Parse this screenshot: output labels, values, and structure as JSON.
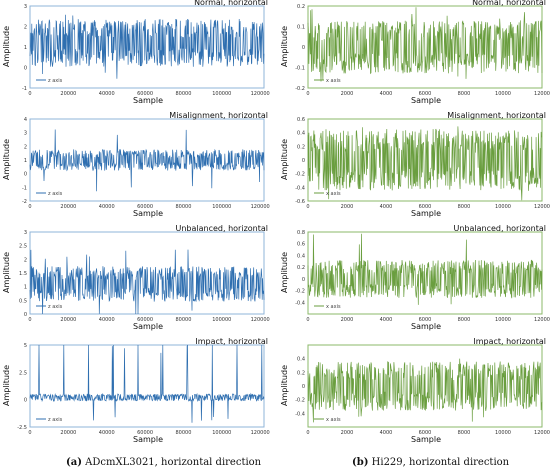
{
  "captions": {
    "left_letter": "(a)",
    "left_text": " ADcmXL3021, horizontal direction",
    "right_letter": "(b)",
    "right_text": " Hi229, horizontal direction"
  },
  "chart_data": [
    {
      "type": "line",
      "title": "Normal, horizontal",
      "xlabel": "Sample",
      "ylabel": "Amplitude",
      "series": [
        {
          "name": "z axis",
          "color": "#2f6fb0",
          "center": 1.2,
          "spread": 0.9,
          "peak": 2.6,
          "trough": -0.9
        }
      ],
      "xlim": [
        0,
        122000
      ],
      "ylim": [
        -1,
        3
      ],
      "xticks": [
        0,
        20000,
        40000,
        60000,
        80000,
        100000,
        120000
      ],
      "yticks": [
        -1,
        0,
        1,
        2,
        3
      ],
      "legend": "bottom-left"
    },
    {
      "type": "line",
      "title": "Misalignment, horizontal",
      "xlabel": "Sample",
      "ylabel": "Amplitude",
      "series": [
        {
          "name": "z axis",
          "color": "#2f6fb0",
          "center": 1.0,
          "spread": 0.6,
          "peak": 4.0,
          "trough": -1.5
        }
      ],
      "xlim": [
        0,
        122000
      ],
      "ylim": [
        -2,
        4
      ],
      "xticks": [
        0,
        20000,
        40000,
        60000,
        80000,
        100000,
        120000
      ],
      "yticks": [
        -2,
        -1,
        0,
        1,
        2,
        3,
        4
      ],
      "legend": "bottom-left"
    },
    {
      "type": "line",
      "title": "Unbalanced, horizontal",
      "xlabel": "Sample",
      "ylabel": "Amplitude",
      "series": [
        {
          "name": "z axis",
          "color": "#2f6fb0",
          "center": 1.1,
          "spread": 0.5,
          "peak": 2.6,
          "trough": -0.3
        }
      ],
      "xlim": [
        0,
        122000
      ],
      "ylim": [
        0,
        3
      ],
      "xticks": [
        0,
        20000,
        40000,
        60000,
        80000,
        100000,
        120000
      ],
      "yticks": [
        0.0,
        0.5,
        1.0,
        1.5,
        2.0,
        2.5,
        3.0
      ],
      "legend": "bottom-left"
    },
    {
      "type": "line",
      "title": "Impact, horizontal",
      "xlabel": "Sample",
      "ylabel": "Amplitude",
      "series": [
        {
          "name": "z axis",
          "color": "#2f6fb0",
          "center": 0.2,
          "spread": 0.25,
          "peak": 5.0,
          "trough": -2.5
        }
      ],
      "xlim": [
        0,
        122000
      ],
      "ylim": [
        -2.5,
        5
      ],
      "xticks": [
        0,
        20000,
        40000,
        60000,
        80000,
        100000,
        120000
      ],
      "yticks": [
        -2.5,
        0.0,
        2.5,
        5.0
      ],
      "legend": "bottom-left"
    },
    {
      "type": "line",
      "title": "Normal, horizontal",
      "xlabel": "Sample",
      "ylabel": "Amplitude",
      "series": [
        {
          "name": "x axis",
          "color": "#6a9e3f",
          "center": 0.0,
          "spread": 0.1,
          "peak": 0.2,
          "trough": -0.2
        }
      ],
      "xlim": [
        0,
        12000
      ],
      "ylim": [
        -0.2,
        0.2
      ],
      "xticks": [
        0,
        2000,
        4000,
        6000,
        8000,
        10000,
        12000
      ],
      "yticks": [
        -0.2,
        -0.1,
        0.0,
        0.1,
        0.2
      ],
      "legend": "bottom-left"
    },
    {
      "type": "line",
      "title": "Misalignment, horizontal",
      "xlabel": "Sample",
      "ylabel": "Amplitude",
      "series": [
        {
          "name": "x axis",
          "color": "#6a9e3f",
          "center": 0.0,
          "spread": 0.35,
          "peak": 0.6,
          "trough": -0.6
        }
      ],
      "xlim": [
        0,
        12000
      ],
      "ylim": [
        -0.6,
        0.6
      ],
      "xticks": [
        0,
        2000,
        4000,
        6000,
        8000,
        10000,
        12000
      ],
      "yticks": [
        -0.6,
        -0.4,
        -0.2,
        0.0,
        0.2,
        0.4,
        0.6
      ],
      "legend": "bottom-left"
    },
    {
      "type": "line",
      "title": "Unbalanced, horizontal",
      "xlabel": "Sample",
      "ylabel": "Amplitude",
      "series": [
        {
          "name": "x axis",
          "color": "#6a9e3f",
          "center": 0.0,
          "spread": 0.25,
          "peak": 0.8,
          "trough": -0.5
        }
      ],
      "xlim": [
        0,
        12000
      ],
      "ylim": [
        -0.6,
        0.8
      ],
      "xticks": [
        0,
        2000,
        4000,
        6000,
        8000,
        10000,
        12000
      ],
      "yticks": [
        -0.4,
        -0.2,
        0.0,
        0.2,
        0.4,
        0.6,
        0.8
      ],
      "legend": "bottom-left"
    },
    {
      "type": "line",
      "title": "Impact, horizontal",
      "xlabel": "Sample",
      "ylabel": "Amplitude",
      "series": [
        {
          "name": "x axis",
          "color": "#6a9e3f",
          "center": 0.0,
          "spread": 0.28,
          "peak": 0.5,
          "trough": -0.55
        }
      ],
      "xlim": [
        0,
        12000
      ],
      "ylim": [
        -0.6,
        0.6
      ],
      "xticks": [
        0,
        2000,
        4000,
        6000,
        8000,
        10000,
        12000
      ],
      "yticks": [
        -0.4,
        -0.2,
        0.0,
        0.2,
        0.4
      ],
      "legend": "bottom-left"
    }
  ]
}
